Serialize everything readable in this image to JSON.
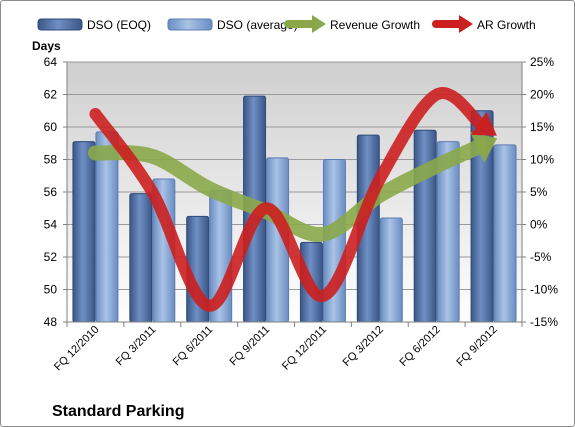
{
  "chart_data": {
    "type": "bar",
    "title": "",
    "company": "Standard Parking",
    "ylabel_left": "Days",
    "ylim_left": [
      48,
      64
    ],
    "yticks_left": [
      "64",
      "62",
      "60",
      "58",
      "56",
      "54",
      "52",
      "50",
      "48"
    ],
    "ylim_right": [
      -15,
      25
    ],
    "yticks_right": [
      "25%",
      "20%",
      "15%",
      "10%",
      "5%",
      "0%",
      "-5%",
      "-10%",
      "-15%"
    ],
    "categories": [
      "FQ 12/2010",
      "FQ 3/2011",
      "FQ 6/2011",
      "FQ 9/2011",
      "FQ 12/2011",
      "FQ 3/2012",
      "FQ 6/2012",
      "FQ 9/2012"
    ],
    "series": [
      {
        "name": "DSO (EOQ)",
        "type": "bar",
        "axis": "left",
        "color": "#4f6fa6",
        "values": [
          59.1,
          55.9,
          54.5,
          61.9,
          52.9,
          59.5,
          59.8,
          61.0
        ]
      },
      {
        "name": "DSO (average)",
        "type": "bar",
        "axis": "left",
        "color": "#7f9fce",
        "values": [
          59.7,
          56.8,
          56.1,
          58.1,
          58.0,
          54.4,
          59.1,
          58.9
        ]
      },
      {
        "name": "Revenue Growth",
        "type": "arrow-line",
        "axis": "right",
        "color": "#8aa84a",
        "values": [
          11.0,
          10.5,
          5.5,
          2.0,
          -1.5,
          4.5,
          9.0,
          13.0
        ]
      },
      {
        "name": "AR Growth",
        "type": "arrow-line",
        "axis": "right",
        "color": "#cc1f1f",
        "values": [
          17.0,
          5.0,
          -12.5,
          2.5,
          -11.0,
          7.0,
          20.0,
          14.0
        ]
      }
    ],
    "grid": true,
    "legend_position": "top"
  }
}
